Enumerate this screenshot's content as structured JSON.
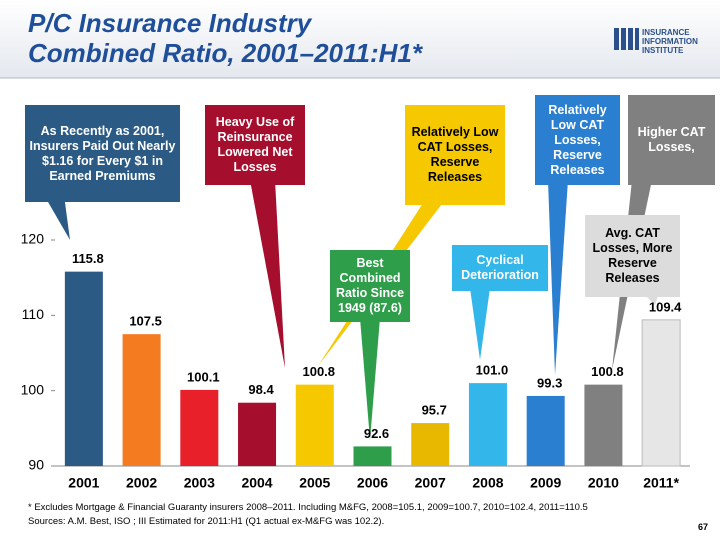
{
  "chart_data": {
    "type": "bar",
    "title": [
      "P/C Insurance Industry",
      "Combined Ratio, 2001–2011:H1*"
    ],
    "logo": [
      "INSURANCE",
      "INFORMATION",
      "INSTITUTE"
    ],
    "categories": [
      "2001",
      "2002",
      "2003",
      "2004",
      "2005",
      "2006",
      "2007",
      "2008",
      "2009",
      "2010",
      "2011*"
    ],
    "values": [
      115.8,
      107.5,
      100.1,
      98.4,
      100.8,
      92.6,
      95.7,
      101.0,
      99.3,
      100.8,
      109.4
    ],
    "value_labels": [
      "115.8",
      "107.5",
      "100.1",
      "98.4",
      "100.8",
      "92.6",
      "95.7",
      "101.0",
      "99.3",
      "100.8",
      "109.4"
    ],
    "colors": [
      "#2b5b84",
      "#f47b20",
      "#e8202a",
      "#a50e2d",
      "#f5c800",
      "#2e9e4a",
      "#e8b800",
      "#33b6ea",
      "#2a7fd0",
      "#808080",
      "#e6e6e6"
    ],
    "ylim": [
      90,
      120
    ],
    "yticks": [
      90,
      100,
      110,
      120
    ],
    "annotations": [
      "As Recently as 2001, Insurers Paid Out Nearly $1.16 for Every $1 in Earned Premiums",
      "Heavy Use of Reinsurance Lowered Net Losses",
      "Relatively Low CAT Losses, Reserve Releases",
      "Best Combined Ratio Since 1949 (87.6)",
      "Cyclical Deterioration",
      "Relatively Low CAT Losses, Reserve Releases",
      "Higher CAT Losses,",
      "Avg. CAT Losses, More Reserve Releases"
    ],
    "notes": [
      "* Excludes Mortgage & Financial Guaranty insurers 2008–2011. Including M&FG, 2008=105.1, 2009=100.7, 2010=102.4, 2011=110.5",
      "Sources: A.M. Best, ISO ; III Estimated for 2011:H1 (Q1 actual ex-M&FG was 102.2)."
    ],
    "page_number": "67"
  }
}
